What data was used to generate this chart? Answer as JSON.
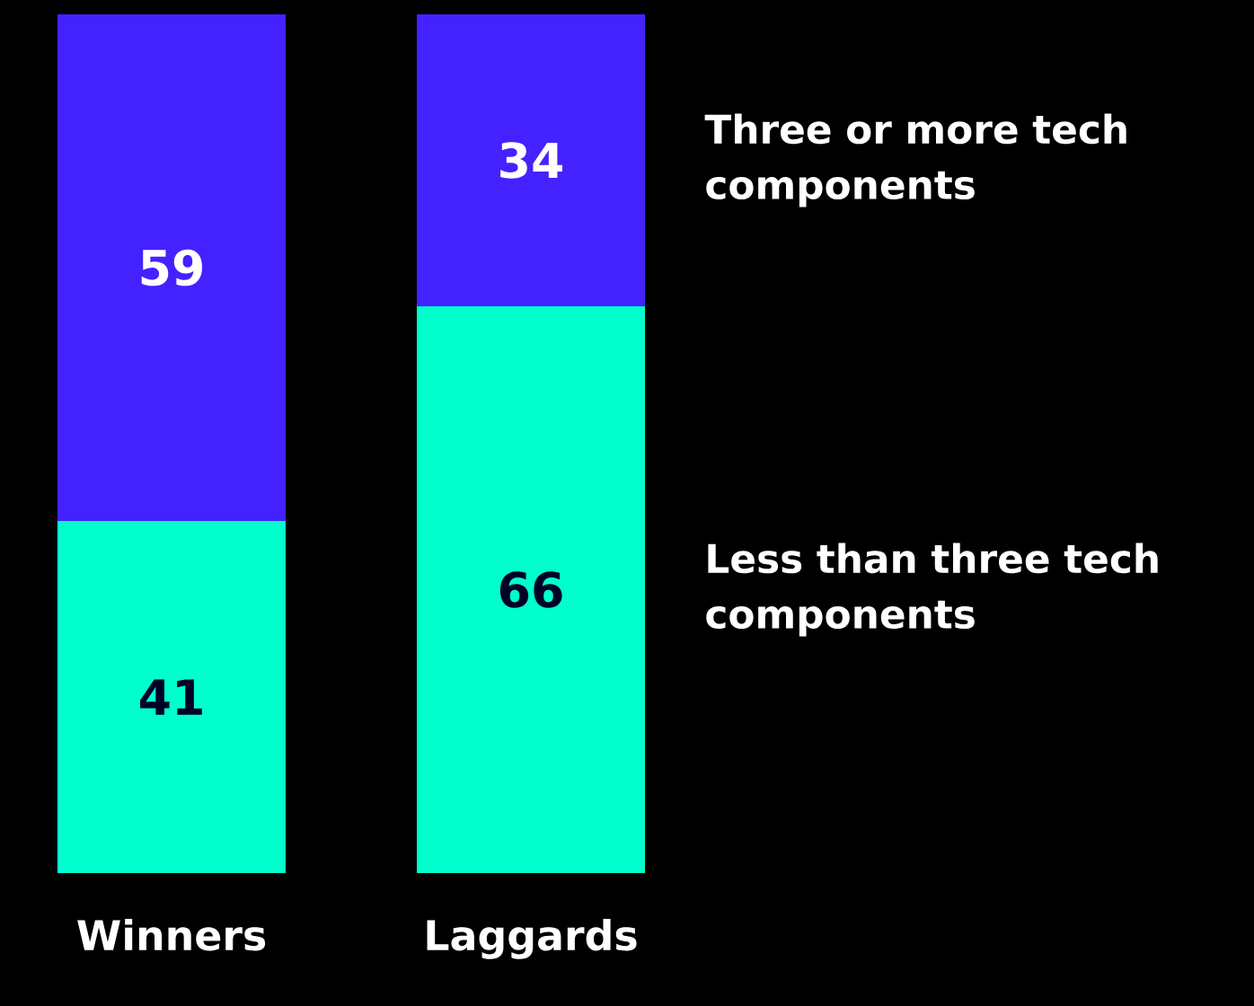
{
  "chart_data": {
    "type": "bar",
    "stacked": true,
    "categories": [
      "Winners",
      "Laggards"
    ],
    "series": [
      {
        "name": "Less than three tech components",
        "color": "#00ffcc",
        "values": [
          41,
          66
        ]
      },
      {
        "name": "Three or more tech components",
        "color": "#4422ff",
        "values": [
          59,
          34
        ]
      }
    ],
    "data_labels": true,
    "legend": "right",
    "tick_labels": "x"
  }
}
